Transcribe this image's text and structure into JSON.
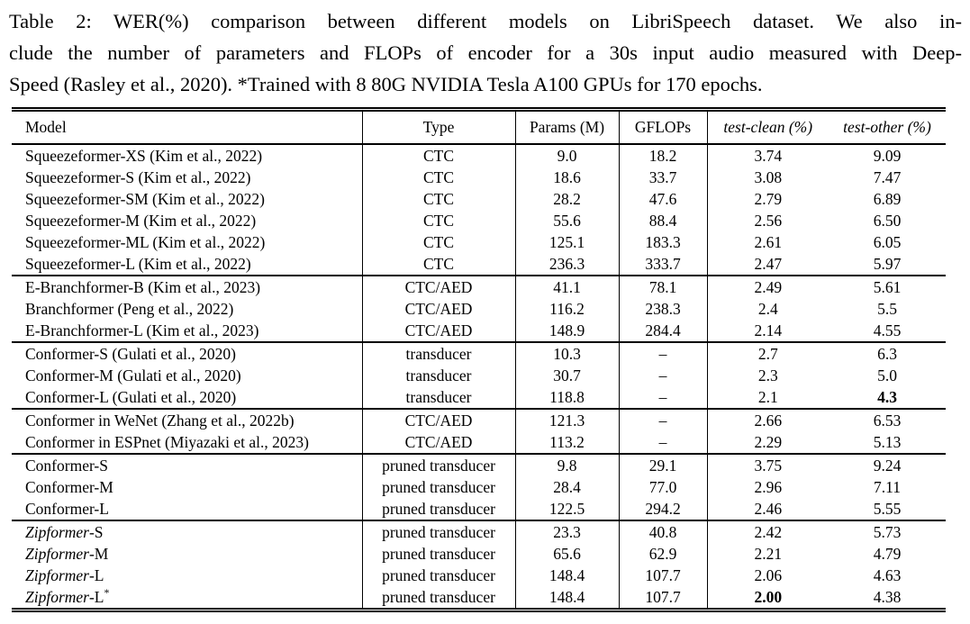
{
  "caption": {
    "lines": [
      "Table 2: WER(%) comparison between different models on LibriSpeech dataset. We also in-",
      "clude the number of parameters and FLOPs of encoder for a 30s input audio measured with Deep-",
      "Speed (Rasley et al., 2020). *Trained with 8 80G NVIDIA Tesla A100 GPUs for 170 epochs."
    ]
  },
  "table": {
    "columns": [
      {
        "label": "Model",
        "italic": false
      },
      {
        "label": "Type",
        "italic": false
      },
      {
        "label": "Params (M)",
        "italic": false
      },
      {
        "label": "GFLOPs",
        "italic": false
      },
      {
        "label": "test-clean (%)",
        "italic": true
      },
      {
        "label": "test-other (%)",
        "italic": true
      }
    ],
    "groups": [
      {
        "rows": [
          {
            "model": "Squeezeformer-XS (Kim et al., 2022)",
            "type": "CTC",
            "params": "9.0",
            "gflops": "18.2",
            "test_clean": "3.74",
            "test_other": "9.09"
          },
          {
            "model": "Squeezeformer-S (Kim et al., 2022)",
            "type": "CTC",
            "params": "18.6",
            "gflops": "33.7",
            "test_clean": "3.08",
            "test_other": "7.47"
          },
          {
            "model": "Squeezeformer-SM (Kim et al., 2022)",
            "type": "CTC",
            "params": "28.2",
            "gflops": "47.6",
            "test_clean": "2.79",
            "test_other": "6.89"
          },
          {
            "model": "Squeezeformer-M (Kim et al., 2022)",
            "type": "CTC",
            "params": "55.6",
            "gflops": "88.4",
            "test_clean": "2.56",
            "test_other": "6.50"
          },
          {
            "model": "Squeezeformer-ML (Kim et al., 2022)",
            "type": "CTC",
            "params": "125.1",
            "gflops": "183.3",
            "test_clean": "2.61",
            "test_other": "6.05"
          },
          {
            "model": "Squeezeformer-L (Kim et al., 2022)",
            "type": "CTC",
            "params": "236.3",
            "gflops": "333.7",
            "test_clean": "2.47",
            "test_other": "5.97"
          }
        ]
      },
      {
        "rows": [
          {
            "model": "E-Branchformer-B (Kim et al., 2023)",
            "type": "CTC/AED",
            "params": "41.1",
            "gflops": "78.1",
            "test_clean": "2.49",
            "test_other": "5.61"
          },
          {
            "model": "Branchformer (Peng et al., 2022)",
            "type": "CTC/AED",
            "params": "116.2",
            "gflops": "238.3",
            "test_clean": "2.4",
            "test_other": "5.5"
          },
          {
            "model": "E-Branchformer-L (Kim et al., 2023)",
            "type": "CTC/AED",
            "params": "148.9",
            "gflops": "284.4",
            "test_clean": "2.14",
            "test_other": "4.55"
          }
        ]
      },
      {
        "rows": [
          {
            "model": "Conformer-S (Gulati et al., 2020)",
            "type": "transducer",
            "params": "10.3",
            "gflops": "–",
            "test_clean": "2.7",
            "test_other": "6.3"
          },
          {
            "model": "Conformer-M (Gulati et al., 2020)",
            "type": "transducer",
            "params": "30.7",
            "gflops": "–",
            "test_clean": "2.3",
            "test_other": "5.0"
          },
          {
            "model": "Conformer-L (Gulati et al., 2020)",
            "type": "transducer",
            "params": "118.8",
            "gflops": "–",
            "test_clean": "2.1",
            "test_other": "4.3",
            "bold_other": true
          }
        ]
      },
      {
        "rows": [
          {
            "model": "Conformer in WeNet (Zhang et al., 2022b)",
            "type": "CTC/AED",
            "params": "121.3",
            "gflops": "–",
            "test_clean": "2.66",
            "test_other": "6.53"
          },
          {
            "model": "Conformer in ESPnet (Miyazaki et al., 2023)",
            "type": "CTC/AED",
            "params": "113.2",
            "gflops": "–",
            "test_clean": "2.29",
            "test_other": "5.13"
          }
        ]
      },
      {
        "rows": [
          {
            "model": "Conformer-S",
            "type": "pruned transducer",
            "params": "9.8",
            "gflops": "29.1",
            "test_clean": "3.75",
            "test_other": "9.24"
          },
          {
            "model": "Conformer-M",
            "type": "pruned transducer",
            "params": "28.4",
            "gflops": "77.0",
            "test_clean": "2.96",
            "test_other": "7.11"
          },
          {
            "model": "Conformer-L",
            "type": "pruned transducer",
            "params": "122.5",
            "gflops": "294.2",
            "test_clean": "2.46",
            "test_other": "5.55"
          }
        ]
      },
      {
        "rows": [
          {
            "model_italic": "Zipformer",
            "model": "-S",
            "type": "pruned transducer",
            "params": "23.3",
            "gflops": "40.8",
            "test_clean": "2.42",
            "test_other": "5.73"
          },
          {
            "model_italic": "Zipformer",
            "model": "-M",
            "type": "pruned transducer",
            "params": "65.6",
            "gflops": "62.9",
            "test_clean": "2.21",
            "test_other": "4.79"
          },
          {
            "model_italic": "Zipformer",
            "model": "-L",
            "type": "pruned transducer",
            "params": "148.4",
            "gflops": "107.7",
            "test_clean": "2.06",
            "test_other": "4.63"
          },
          {
            "model_italic": "Zipformer",
            "model": "-L",
            "model_sup": "*",
            "type": "pruned transducer",
            "params": "148.4",
            "gflops": "107.7",
            "test_clean": "2.00",
            "bold_clean": true,
            "test_other": "4.38"
          }
        ]
      }
    ]
  }
}
